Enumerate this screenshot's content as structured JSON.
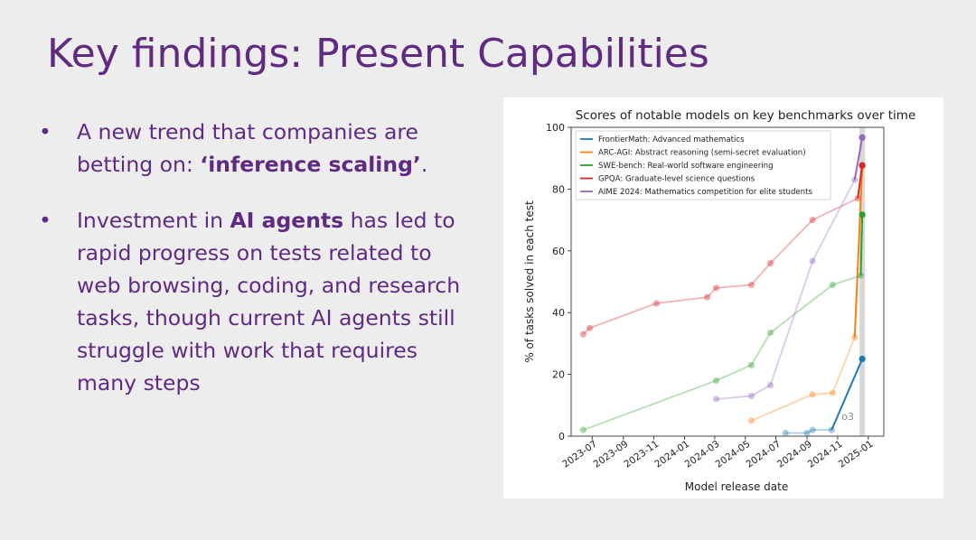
{
  "slide": {
    "title": "Key findings: Present Capabilities",
    "bullet1": {
      "marker": "•",
      "text_a": "A new trend that companies are betting on: ",
      "bold": "‘inference scaling’",
      "text_b": "."
    },
    "bullet2": {
      "marker": "•",
      "text_a": "Investment in ",
      "bold": "AI agents",
      "text_b": " has led to rapid progress on tests related to web browsing, coding, and research tasks, though current AI agents still struggle with work that requires many steps"
    }
  },
  "chart_data": {
    "type": "line",
    "title": "Scores of notable models on key benchmarks over time",
    "xlabel": "Model release date",
    "ylabel": "% of tasks solved in each test",
    "ylim": [
      0,
      100
    ],
    "yticks": [
      "0",
      "20",
      "40",
      "60",
      "80",
      "100"
    ],
    "xticks": [
      "2023-07",
      "2023-09",
      "2023-11",
      "2024-01",
      "2024-03",
      "2024-05",
      "2024-07",
      "2024-09",
      "2024-11",
      "2025-01"
    ],
    "annotation": "o3",
    "series": [
      {
        "name": "FrontierMath: Advanced mathematics",
        "color": "#1f77b4",
        "dates": [
          "2024-07-20",
          "2024-09-01",
          "2024-09-12",
          "2024-10-20",
          "2024-12-20"
        ],
        "values": [
          1,
          1,
          2,
          2,
          25
        ]
      },
      {
        "name": "ARC-AGI: Abstract reasoning (semi-secret evaluation)",
        "color": "#ff7f0e",
        "dates": [
          "2024-05-13",
          "2024-09-12",
          "2024-10-22",
          "2024-12-05",
          "2024-12-20"
        ],
        "values": [
          5,
          13.5,
          14,
          32,
          87.5
        ]
      },
      {
        "name": "SWE-bench: Real-world software engineering",
        "color": "#2ca02c",
        "dates": [
          "2023-06-13",
          "2024-03-04",
          "2024-05-13",
          "2024-06-20",
          "2024-10-22",
          "2024-12-17",
          "2024-12-20"
        ],
        "values": [
          2,
          18,
          23,
          33.5,
          49,
          52,
          71.7
        ]
      },
      {
        "name": "GPQA: Graduate-level science questions",
        "color": "#d62728",
        "dates": [
          "2023-06-13",
          "2023-06-26",
          "2023-11-06",
          "2024-02-15",
          "2024-03-04",
          "2024-05-13",
          "2024-06-20",
          "2024-09-12",
          "2024-12-11",
          "2024-12-20"
        ],
        "values": [
          33,
          35,
          43,
          45,
          48,
          49,
          56,
          70,
          77,
          87.7
        ]
      },
      {
        "name": "AIME 2024: Mathematics competition for elite students",
        "color": "#9467bd",
        "dates": [
          "2024-03-04",
          "2024-05-13",
          "2024-06-20",
          "2024-09-12",
          "2024-12-05",
          "2024-12-20"
        ],
        "values": [
          12,
          13,
          16.5,
          56.7,
          83,
          96.7
        ]
      }
    ]
  }
}
